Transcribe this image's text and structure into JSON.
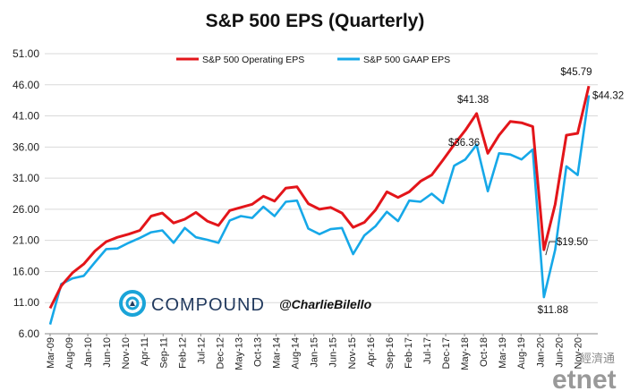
{
  "chart_data": {
    "type": "line",
    "title": "S&P 500 EPS (Quarterly)",
    "y_ticks": [
      "51.00",
      "46.00",
      "41.00",
      "36.00",
      "31.00",
      "26.00",
      "21.00",
      "16.00",
      "11.00",
      "6.00"
    ],
    "ylim": [
      6,
      51
    ],
    "x_tick_labels": [
      "Mar-09",
      "Aug-09",
      "Jan-10",
      "Jun-10",
      "Nov-10",
      "Apr-11",
      "Sep-11",
      "Feb-12",
      "Jul-12",
      "Dec-12",
      "May-13",
      "Oct-13",
      "Mar-14",
      "Aug-14",
      "Jan-15",
      "Jun-15",
      "Nov-15",
      "Apr-16",
      "Sep-16",
      "Feb-17",
      "Jul-17",
      "Dec-17",
      "May-18",
      "Oct-18",
      "Mar-19",
      "Aug-19",
      "Jan-20",
      "Jun-20",
      "Nov-20"
    ],
    "grid": "horizontal",
    "legend_position": "top",
    "series": [
      {
        "name": "S&P 500 Operating EPS",
        "color": "#e3151a",
        "values": [
          10.1,
          13.7,
          15.8,
          17.2,
          19.3,
          20.8,
          21.5,
          22.0,
          22.6,
          24.9,
          25.4,
          23.8,
          24.4,
          25.5,
          24.1,
          23.4,
          25.8,
          26.3,
          26.8,
          28.1,
          27.3,
          29.4,
          29.6,
          26.9,
          26.0,
          26.3,
          25.4,
          23.1,
          23.9,
          25.9,
          28.8,
          27.9,
          28.8,
          30.5,
          31.5,
          33.9,
          36.4,
          38.7,
          41.38,
          35.0,
          37.9,
          40.1,
          39.9,
          39.3,
          19.5,
          26.8,
          37.9,
          38.2,
          45.79
        ]
      },
      {
        "name": "S&P 500 GAAP EPS",
        "color": "#16a8e8",
        "values": [
          7.5,
          14.0,
          14.9,
          15.3,
          17.5,
          19.6,
          19.7,
          20.6,
          21.4,
          22.3,
          22.6,
          20.6,
          23.0,
          21.5,
          21.1,
          20.6,
          24.2,
          24.9,
          24.6,
          26.4,
          24.9,
          27.2,
          27.4,
          22.9,
          22.0,
          22.8,
          23.0,
          18.8,
          21.8,
          23.3,
          25.6,
          24.1,
          27.4,
          27.2,
          28.5,
          27.0,
          33.0,
          34.0,
          36.36,
          28.9,
          35.0,
          34.8,
          34.0,
          35.6,
          11.88,
          19.5,
          32.9,
          31.5,
          44.32
        ]
      }
    ],
    "annotations": [
      {
        "text": "$45.79"
      },
      {
        "text": "$44.32"
      },
      {
        "text": "$41.38"
      },
      {
        "text": "$36.36"
      },
      {
        "text": "$19.50"
      },
      {
        "text": "$11.88"
      }
    ]
  },
  "branding": {
    "compound": "COMPOUND",
    "handle": "@CharlieBilello",
    "watermark_cn": "經濟通",
    "watermark_logo": "etnet"
  }
}
